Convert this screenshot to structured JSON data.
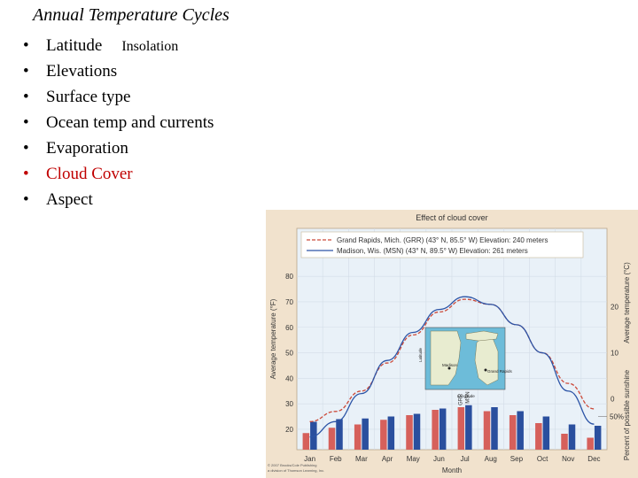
{
  "slide": {
    "title": "Annual Temperature Cycles",
    "bullets": [
      {
        "label": "Latitude",
        "extra": "Insolation",
        "highlight": false
      },
      {
        "label": "Elevations",
        "highlight": false
      },
      {
        "label": "Surface type",
        "highlight": false
      },
      {
        "label": "Ocean temp and currents",
        "highlight": false
      },
      {
        "label": "Evaporation",
        "highlight": false
      },
      {
        "label": "Cloud Cover",
        "highlight": true
      },
      {
        "label": "Aspect",
        "highlight": false
      }
    ],
    "bullet_glyph": "•",
    "colors": {
      "text": "#000000",
      "highlight": "#c00000"
    }
  },
  "chart_data": {
    "type": "line",
    "title": "Effect of cloud cover",
    "xlabel": "Month",
    "ylabel": "Average temperature (°F)",
    "ylabel_right": "Average temperature (°C)",
    "ylabel_right_bars": "Percent of possible sunshine",
    "categories": [
      "Jan",
      "Feb",
      "Mar",
      "Apr",
      "May",
      "Jun",
      "Jul",
      "Aug",
      "Sep",
      "Oct",
      "Nov",
      "Dec"
    ],
    "yticks_f": [
      20,
      30,
      40,
      50,
      60,
      70,
      80
    ],
    "yticks_c": [
      0,
      10,
      20
    ],
    "sunshine_tick": "50%",
    "series": [
      {
        "name": "Grand Rapids, Mich. (GRR) (43° N, 85.5° W) Elevation: 240 meters",
        "color": "#cc4a3a",
        "dash": true,
        "values": [
          23,
          27,
          35,
          46,
          57,
          66,
          71,
          69,
          61,
          50,
          38,
          28
        ],
        "sunshine": [
          25,
          33,
          38,
          45,
          52,
          60,
          64,
          58,
          52,
          40,
          24,
          18
        ]
      },
      {
        "name": "Madison, Wis. (MSN) (43° N, 89.5° W) Elevation: 261 meters",
        "color": "#2c54a6",
        "dash": false,
        "values": [
          17,
          23,
          34,
          47,
          58,
          67,
          72,
          69,
          61,
          50,
          35,
          22
        ],
        "sunshine": [
          42,
          46,
          47,
          50,
          54,
          62,
          67,
          64,
          58,
          50,
          38,
          36
        ]
      }
    ],
    "bar_labels": [
      "GRR",
      "MSN"
    ],
    "inset": {
      "labels": [
        "Latitude",
        "Madison",
        "Grand Rapids",
        "Longitude"
      ]
    },
    "credit": [
      "© 2007 Brooks/Cole Publishing",
      "a division of Thomson Learning, Inc."
    ]
  }
}
